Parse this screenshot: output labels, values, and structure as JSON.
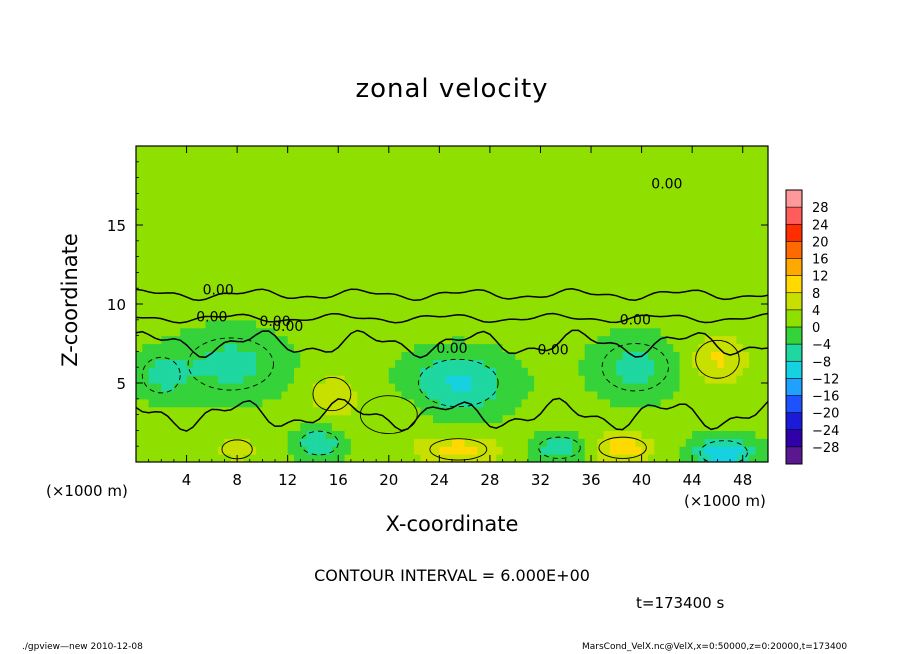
{
  "chart_data": {
    "type": "heatmap",
    "title": "zonal velocity",
    "xlabel": "X-coordinate",
    "ylabel": "Z-coordinate",
    "x_unit_left": "(×1000 m)",
    "x_unit_right": "(×1000 m)",
    "xlim": [
      0,
      50
    ],
    "ylim": [
      0,
      20
    ],
    "x_ticks": [
      "4",
      "8",
      "12",
      "16",
      "20",
      "24",
      "28",
      "32",
      "36",
      "40",
      "44",
      "48"
    ],
    "x_tick_values": [
      4,
      8,
      12,
      16,
      20,
      24,
      28,
      32,
      36,
      40,
      44,
      48
    ],
    "y_ticks": [
      "5",
      "10",
      "15"
    ],
    "y_tick_values": [
      5,
      10,
      15
    ],
    "contour_interval": "CONTOUR INTERVAL = 6.000E+00",
    "contour_labels": [
      "0.00",
      "0.00",
      "0.00",
      "0.00",
      "0.00",
      "0.00",
      "0.00",
      "0.00"
    ],
    "colorbar": {
      "labels": [
        "28",
        "24",
        "20",
        "16",
        "12",
        "8",
        "4",
        "0",
        "−4",
        "−8",
        "−12",
        "−16",
        "−20",
        "−24",
        "−28"
      ],
      "values": [
        28,
        24,
        20,
        16,
        12,
        8,
        4,
        0,
        -4,
        -8,
        -12,
        -16,
        -20,
        -24,
        -28
      ],
      "colors": [
        "#ff9999",
        "#ff5c5c",
        "#ff2e00",
        "#ff6a00",
        "#ffa800",
        "#ffd900",
        "#c8e000",
        "#8fe000",
        "#35d23a",
        "#1fd7a0",
        "#16d2e0",
        "#20a0ff",
        "#1e52ff",
        "#1a1ad8",
        "#3000a8",
        "#5a1890"
      ]
    },
    "cells": {
      "nx": 50,
      "nz": 20,
      "features": [
        {
          "x": 7.5,
          "z": 6.2,
          "rx": 4.5,
          "rz": 2.2,
          "value": -7
        },
        {
          "x": 25.5,
          "z": 5.0,
          "rx": 4.2,
          "rz": 2.0,
          "value": -10
        },
        {
          "x": 39.5,
          "z": 6.0,
          "rx": 3.5,
          "rz": 2.0,
          "value": -7
        },
        {
          "x": 46.0,
          "z": 6.5,
          "rx": 2.3,
          "rz": 1.6,
          "value": 7
        },
        {
          "x": 15.5,
          "z": 4.3,
          "rx": 2.0,
          "rz": 1.4,
          "value": 5
        },
        {
          "x": 14.5,
          "z": 1.2,
          "rx": 2.0,
          "rz": 1.0,
          "value": -9
        },
        {
          "x": 25.5,
          "z": 0.8,
          "rx": 3.0,
          "rz": 0.9,
          "value": 9
        },
        {
          "x": 33.5,
          "z": 0.9,
          "rx": 2.2,
          "rz": 0.9,
          "value": -8
        },
        {
          "x": 38.5,
          "z": 0.9,
          "rx": 2.5,
          "rz": 0.9,
          "value": 9
        },
        {
          "x": 46.5,
          "z": 0.6,
          "rx": 2.5,
          "rz": 1.0,
          "value": -13
        },
        {
          "x": 8.0,
          "z": 0.8,
          "rx": 1.6,
          "rz": 0.8,
          "value": 5
        },
        {
          "x": 2.0,
          "z": 5.5,
          "rx": 2.0,
          "rz": 1.5,
          "value": -6
        },
        {
          "x": 20.0,
          "z": 3.0,
          "rx": 3.0,
          "rz": 1.6,
          "value": 3
        }
      ]
    },
    "time_label": "t=173400 s"
  },
  "footer": {
    "left": "./gpview—new  2010-12-08",
    "right": "MarsCond_VelX.nc@VelX,x=0:50000,z=0:20000,t=173400"
  }
}
